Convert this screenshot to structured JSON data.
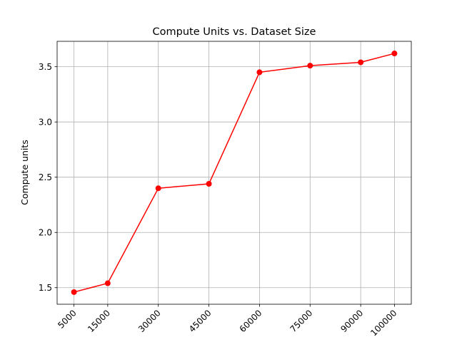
{
  "chart_data": {
    "type": "line",
    "title": "Compute Units vs. Dataset Size",
    "xlabel": "",
    "ylabel": "Compute units",
    "x": [
      5000,
      15000,
      30000,
      45000,
      60000,
      75000,
      90000,
      100000
    ],
    "x_tick_labels": [
      "5000",
      "15000",
      "30000",
      "45000",
      "60000",
      "75000",
      "90000",
      "100000"
    ],
    "series": [
      {
        "values": [
          1.46,
          1.54,
          2.4,
          2.44,
          3.45,
          3.51,
          3.54,
          3.62
        ]
      }
    ],
    "xlim": [
      0,
      105000
    ],
    "ylim": [
      1.35,
      3.73
    ],
    "y_ticks": [
      1.5,
      2.0,
      2.5,
      3.0,
      3.5
    ],
    "y_tick_labels": [
      "1.5",
      "2.0",
      "2.5",
      "3.0",
      "3.5"
    ],
    "grid": true,
    "line_color": "#ff0000",
    "marker": "circle",
    "x_tick_rotation": 45
  }
}
